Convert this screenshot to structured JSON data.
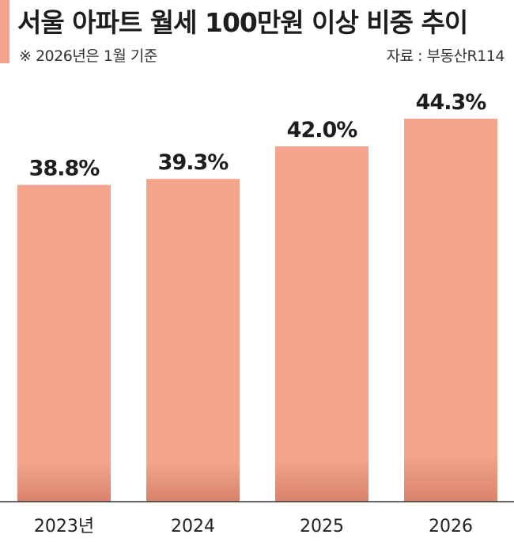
{
  "header": {
    "title": "서울 아파트 월세 100만원 이상 비중 추이",
    "note": "※ 2026년은 1월 기준",
    "source": "자료 : 부동산R114"
  },
  "colors": {
    "bar": "#f2a48c",
    "bar_shadow": "#d9826c",
    "accent": "#f2a48c",
    "axis": "#333333"
  },
  "chart_data": {
    "type": "bar",
    "categories": [
      "2023년",
      "2024",
      "2025",
      "2026"
    ],
    "values": [
      38.8,
      39.3,
      42.0,
      44.3
    ],
    "value_labels": [
      "38.8%",
      "39.3%",
      "42.0%",
      "44.3%"
    ],
    "title": "서울 아파트 월세 100만원 이상 비중 추이",
    "xlabel": "",
    "ylabel": "",
    "unit": "%",
    "ylim": [
      0,
      46
    ],
    "grid": false
  }
}
